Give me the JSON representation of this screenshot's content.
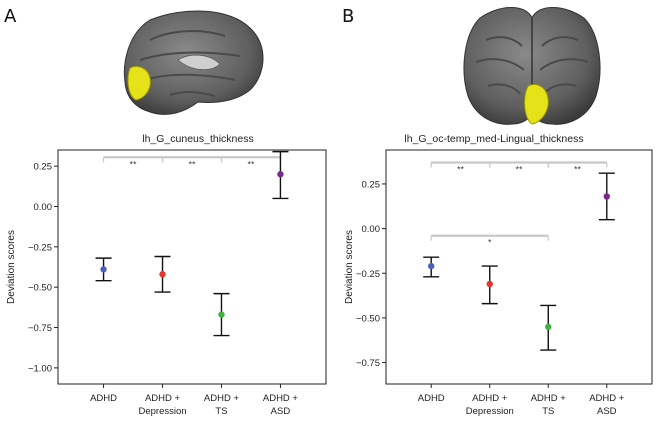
{
  "panels": [
    {
      "letter": "A",
      "brain_view": "medial-left-hemisphere",
      "chart_data": {
        "type": "scatter",
        "title": "lh_G_cuneus_thickness",
        "ylabel": "Deviation scores",
        "xlabel": "",
        "ylim": [
          -1.1,
          0.35
        ],
        "yticks": [
          0.25,
          0.0,
          -0.25,
          -0.5,
          -0.75,
          -1.0
        ],
        "ytick_labels": [
          "0.25",
          "0.00",
          "−0.25",
          "−0.50",
          "−0.75",
          "−1.00"
        ],
        "categories": [
          [
            "ADHD"
          ],
          [
            "ADHD +",
            "Depression"
          ],
          [
            "ADHD +",
            "TS"
          ],
          [
            "ADHD +",
            "ASD"
          ]
        ],
        "means": [
          -0.39,
          -0.42,
          -0.67,
          0.2
        ],
        "err_low": [
          -0.46,
          -0.53,
          -0.8,
          0.05
        ],
        "err_high": [
          -0.32,
          -0.31,
          -0.54,
          0.34
        ],
        "colors": [
          "#4a5fc1",
          "#e8322d",
          "#3cb33c",
          "#7a2a8a"
        ],
        "comparisons": [
          {
            "from": 0,
            "to": 1,
            "label": "**",
            "level": 0.305
          },
          {
            "from": 1,
            "to": 2,
            "label": "**",
            "level": 0.305
          },
          {
            "from": 2,
            "to": 3,
            "label": "**",
            "level": 0.305
          }
        ]
      }
    },
    {
      "letter": "B",
      "brain_view": "inferior",
      "chart_data": {
        "type": "scatter",
        "title": "lh_G_oc-temp_med-Lingual_thickness",
        "ylabel": "Deviation scores",
        "xlabel": "",
        "ylim": [
          -0.87,
          0.44
        ],
        "yticks": [
          0.25,
          0.0,
          -0.25,
          -0.5,
          -0.75
        ],
        "ytick_labels": [
          "0.25",
          "0.00",
          "−0.25",
          "−0.50",
          "−0.75"
        ],
        "categories": [
          [
            "ADHD"
          ],
          [
            "ADHD +",
            "Depression"
          ],
          [
            "ADHD +",
            "TS"
          ],
          [
            "ADHD +",
            "ASD"
          ]
        ],
        "means": [
          -0.21,
          -0.31,
          -0.55,
          0.18
        ],
        "err_low": [
          -0.27,
          -0.42,
          -0.68,
          0.05
        ],
        "err_high": [
          -0.16,
          -0.21,
          -0.43,
          0.31
        ],
        "colors": [
          "#4a5fc1",
          "#e8322d",
          "#3cb33c",
          "#7a2a8a"
        ],
        "comparisons": [
          {
            "from": 0,
            "to": 1,
            "label": "**",
            "level": 0.37
          },
          {
            "from": 1,
            "to": 2,
            "label": "**",
            "level": 0.37
          },
          {
            "from": 2,
            "to": 3,
            "label": "**",
            "level": 0.37
          },
          {
            "from": 0,
            "to": 2,
            "label": "*",
            "level": -0.04
          }
        ]
      }
    }
  ]
}
